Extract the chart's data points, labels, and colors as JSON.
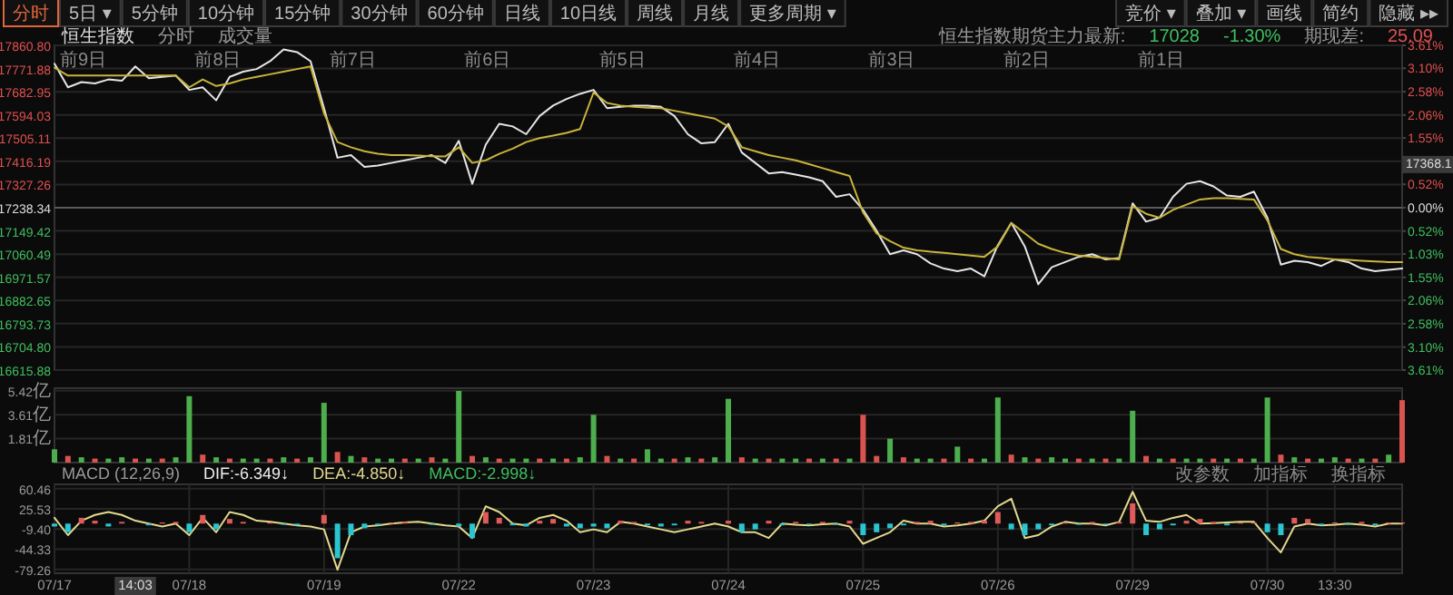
{
  "chart_data": [
    {
      "type": "line",
      "tick_labels": "y",
      "grid": "y",
      "categories": [
        null,
        null,
        null,
        null,
        null,
        null,
        null,
        null,
        null,
        null,
        null,
        null,
        null,
        null,
        null,
        null,
        null,
        null,
        null,
        null,
        null,
        null,
        null,
        null,
        null,
        null,
        null,
        null,
        null,
        null,
        null,
        null,
        null,
        null,
        null,
        null,
        null,
        null,
        null,
        null,
        null,
        null,
        null,
        null,
        null,
        null,
        null,
        null,
        null,
        null,
        null,
        null,
        null,
        null,
        null,
        null,
        null,
        null,
        null,
        null,
        null,
        null,
        null,
        null,
        null,
        null,
        null,
        null,
        null,
        null,
        null,
        null,
        null,
        null,
        null,
        null,
        null,
        null,
        null,
        null,
        null,
        null,
        null,
        null,
        null,
        null,
        null,
        null,
        null,
        null,
        null,
        null,
        null,
        null,
        null,
        null,
        null,
        null,
        null,
        null,
        null
      ],
      "ylim": [
        16615.88,
        17860.8
      ],
      "yticks": [
        {
          "value": 16615.88,
          "label": "16615.88"
        },
        {
          "value": 16704.8,
          "label": "16704.80"
        },
        {
          "value": 16793.73,
          "label": "16793.73"
        },
        {
          "value": 16882.65,
          "label": "16882.65"
        },
        {
          "value": 16971.57,
          "label": "16971.57"
        },
        {
          "value": 17060.49,
          "label": "17060.49"
        },
        {
          "value": 17149.42,
          "label": "17149.42"
        },
        {
          "value": 17238.34,
          "label": "17238.34"
        },
        {
          "value": 17327.26,
          "label": "17327.26"
        },
        {
          "value": 17416.19,
          "label": "17416.19"
        },
        {
          "value": 17505.11,
          "label": "17505.11"
        },
        {
          "value": 17594.03,
          "label": "17594.03"
        },
        {
          "value": 17682.95,
          "label": "17682.95"
        },
        {
          "value": 17771.88,
          "label": "17771.88"
        },
        {
          "value": 17860.8,
          "label": "17860.80"
        }
      ],
      "y2lim": [
        -3.61,
        3.61
      ],
      "y2ticks": [
        {
          "value": -3.61,
          "label": "3.61%"
        },
        {
          "value": -3.1,
          "label": "3.10%"
        },
        {
          "value": -2.58,
          "label": "2.58%"
        },
        {
          "value": -2.06,
          "label": "2.06%"
        },
        {
          "value": -1.55,
          "label": "1.55%"
        },
        {
          "value": -1.03,
          "label": "1.03%"
        },
        {
          "value": -0.52,
          "label": "0.52%"
        },
        {
          "value": 0,
          "label": "0.00%"
        },
        {
          "value": 0.52,
          "label": "0.52%"
        },
        {
          "value": 1.03,
          "label": null
        },
        {
          "value": 1.55,
          "label": "1.55%"
        },
        {
          "value": 2.06,
          "label": "2.06%"
        },
        {
          "value": 2.58,
          "label": "2.58%"
        },
        {
          "value": 3.1,
          "label": "3.10%"
        },
        {
          "value": 3.61,
          "label": "3.61%"
        }
      ],
      "ref_lines": [
        {
          "axis": "y",
          "value": 17238.34,
          "color": "#5a5a5a"
        }
      ],
      "series": [
        {
          "color": "#e6e6e6",
          "values": [
            17790,
            17700,
            17720,
            17715,
            17730,
            17725,
            17780,
            17735,
            17740,
            17745,
            17690,
            17700,
            17650,
            17740,
            17760,
            17770,
            17800,
            17845,
            17835,
            17800,
            17620,
            17430,
            17440,
            17395,
            17400,
            17410,
            17420,
            17430,
            17440,
            17410,
            17495,
            17330,
            17480,
            17560,
            17550,
            17520,
            17590,
            17630,
            17655,
            17675,
            17690,
            17620,
            17625,
            17630,
            17630,
            17625,
            17590,
            17520,
            17485,
            17490,
            17560,
            17450,
            17410,
            17370,
            17375,
            17365,
            17355,
            17340,
            17280,
            17290,
            17230,
            17150,
            17060,
            17075,
            17060,
            17025,
            17005,
            16995,
            17005,
            16975,
            17095,
            17180,
            17090,
            16945,
            17010,
            17030,
            17050,
            17060,
            17040,
            17045,
            17255,
            17185,
            17200,
            17280,
            17330,
            17340,
            17320,
            17285,
            17280,
            17300,
            17200,
            17020,
            17035,
            17030,
            17015,
            17040,
            17030,
            17005,
            16995,
            17000,
            17005
          ]
        },
        {
          "color": "#c9b43c",
          "values": [
            17775,
            17745,
            17745,
            17745,
            17745,
            17745,
            17745,
            17745,
            17745,
            17745,
            17700,
            17730,
            17705,
            17715,
            17730,
            17740,
            17750,
            17760,
            17770,
            17780,
            17600,
            17490,
            17470,
            17455,
            17445,
            17440,
            17440,
            17438,
            17436,
            17435,
            17470,
            17410,
            17420,
            17445,
            17465,
            17490,
            17505,
            17515,
            17525,
            17540,
            17680,
            17640,
            17630,
            17625,
            17622,
            17620,
            17610,
            17600,
            17590,
            17580,
            17550,
            17470,
            17455,
            17440,
            17430,
            17420,
            17405,
            17390,
            17375,
            17360,
            17220,
            17140,
            17110,
            17085,
            17075,
            17070,
            17065,
            17060,
            17055,
            17050,
            17090,
            17180,
            17140,
            17100,
            17080,
            17065,
            17055,
            17050,
            17045,
            17040,
            17245,
            17215,
            17200,
            17230,
            17250,
            17270,
            17275,
            17275,
            17272,
            17270,
            17190,
            17080,
            17060,
            17050,
            17045,
            17040,
            17038,
            17035,
            17032,
            17030,
            17030
          ]
        }
      ],
      "annotations": [
        "分时",
        "5日 ▾",
        "5分钟",
        "10分钟",
        "15分钟",
        "30分钟",
        "60分钟",
        "日线",
        "10日线",
        "周线",
        "月线",
        "更多周期 ▾",
        "竞价 ▾",
        "叠加 ▾",
        "画线",
        "简约",
        "隐藏 ▸▸",
        "恒生指数",
        "分时",
        "成交量",
        "恒生指数期货主力最新:",
        "17028",
        "-1.30%",
        "期现差:",
        "25.09",
        "17368.1",
        "前9日",
        "前8日",
        "前7日",
        "前6日",
        "前5日",
        "前4日",
        "前3日",
        "前2日",
        "前1日"
      ]
    },
    {
      "type": "bar",
      "tick_labels": "y",
      "grid": "y",
      "ylim": [
        0,
        5.6
      ],
      "categories": [
        null,
        null,
        null,
        null,
        null,
        null,
        null,
        null,
        null,
        null,
        null,
        null,
        null,
        null,
        null,
        null,
        null,
        null,
        null,
        null,
        null,
        null,
        null,
        null,
        null,
        null,
        null,
        null,
        null,
        null,
        null,
        null,
        null,
        null,
        null,
        null,
        null,
        null,
        null,
        null,
        null,
        null,
        null,
        null,
        null,
        null,
        null,
        null,
        null,
        null,
        null,
        null,
        null,
        null,
        null,
        null,
        null,
        null,
        null,
        null,
        null,
        null,
        null,
        null,
        null,
        null,
        null,
        null,
        null,
        null,
        null,
        null,
        null,
        null,
        null,
        null,
        null,
        null,
        null,
        null,
        null,
        null,
        null,
        null,
        null,
        null,
        null,
        null,
        null,
        null,
        null,
        null,
        null,
        null,
        null,
        null,
        null,
        null,
        null,
        null,
        null
      ],
      "yticks": [
        {
          "value": 1.81,
          "label": "1.81亿"
        },
        {
          "value": 3.61,
          "label": "3.61亿"
        },
        {
          "value": 5.42,
          "label": "5.42亿"
        }
      ],
      "values": [
        1.0,
        0.5,
        0.4,
        0.3,
        0.3,
        0.4,
        0.3,
        0.3,
        0.3,
        0.4,
        5.0,
        0.6,
        0.4,
        0.3,
        0.3,
        0.3,
        0.3,
        0.4,
        0.3,
        0.4,
        4.5,
        0.8,
        0.5,
        0.4,
        0.3,
        0.3,
        0.3,
        0.3,
        0.4,
        0.3,
        5.4,
        0.5,
        0.4,
        0.3,
        0.3,
        0.3,
        0.3,
        0.3,
        0.3,
        0.4,
        3.6,
        0.5,
        0.3,
        0.3,
        1.0,
        0.3,
        0.3,
        0.4,
        0.3,
        0.4,
        4.8,
        0.4,
        0.3,
        0.3,
        0.3,
        0.3,
        0.3,
        0.3,
        0.3,
        0.3,
        3.6,
        0.5,
        1.8,
        0.4,
        0.3,
        0.3,
        0.3,
        1.2,
        0.3,
        0.3,
        4.9,
        0.6,
        0.4,
        0.3,
        0.4,
        0.3,
        0.3,
        0.3,
        0.3,
        0.3,
        3.9,
        0.5,
        0.3,
        0.3,
        0.3,
        0.3,
        0.3,
        0.3,
        0.3,
        0.3,
        4.9,
        0.6,
        0.4,
        0.3,
        0.3,
        0.4,
        0.3,
        0.3,
        0.3,
        0.6,
        4.7
      ],
      "colors": [
        "#4cae4c",
        "#d9534f",
        "#4cae4c",
        "#d9534f",
        "#4cae4c",
        "#4cae4c",
        "#d9534f",
        "#4cae4c",
        "#d9534f",
        "#4cae4c",
        "#4cae4c",
        "#d9534f",
        "#4cae4c",
        "#d9534f",
        "#4cae4c",
        "#4cae4c",
        "#d9534f",
        "#4cae4c",
        "#d9534f",
        "#4cae4c",
        "#4cae4c",
        "#d9534f",
        "#4cae4c",
        "#d9534f",
        "#4cae4c",
        "#4cae4c",
        "#d9534f",
        "#4cae4c",
        "#d9534f",
        "#4cae4c",
        "#4cae4c",
        "#d9534f",
        "#4cae4c",
        "#d9534f",
        "#4cae4c",
        "#4cae4c",
        "#d9534f",
        "#4cae4c",
        "#d9534f",
        "#4cae4c",
        "#4cae4c",
        "#d9534f",
        "#4cae4c",
        "#d9534f",
        "#4cae4c",
        "#4cae4c",
        "#d9534f",
        "#4cae4c",
        "#d9534f",
        "#4cae4c",
        "#4cae4c",
        "#d9534f",
        "#4cae4c",
        "#d9534f",
        "#4cae4c",
        "#4cae4c",
        "#d9534f",
        "#4cae4c",
        "#d9534f",
        "#4cae4c",
        "#d9534f",
        "#d9534f",
        "#4cae4c",
        "#d9534f",
        "#4cae4c",
        "#4cae4c",
        "#d9534f",
        "#4cae4c",
        "#d9534f",
        "#4cae4c",
        "#4cae4c",
        "#d9534f",
        "#4cae4c",
        "#d9534f",
        "#4cae4c",
        "#4cae4c",
        "#d9534f",
        "#4cae4c",
        "#d9534f",
        "#4cae4c",
        "#4cae4c",
        "#d9534f",
        "#4cae4c",
        "#d9534f",
        "#4cae4c",
        "#4cae4c",
        "#d9534f",
        "#4cae4c",
        "#d9534f",
        "#4cae4c",
        "#4cae4c",
        "#d9534f",
        "#4cae4c",
        "#d9534f",
        "#4cae4c",
        "#4cae4c",
        "#d9534f",
        "#4cae4c",
        "#d9534f",
        "#4cae4c",
        "#d9534f"
      ]
    },
    {
      "type": "bar",
      "grid": true,
      "ylim": [
        -86,
        68
      ],
      "yticks": [
        {
          "value": -79.26,
          "label": "-79.26"
        },
        {
          "value": -44.33,
          "label": "-44.33"
        },
        {
          "value": -9.4,
          "label": "-9.40"
        },
        {
          "value": 25.53,
          "label": "25.53"
        },
        {
          "value": 60.46,
          "label": "60.46"
        }
      ],
      "categories": [
        "07/17",
        null,
        null,
        null,
        null,
        null,
        null,
        null,
        null,
        null,
        "07/18",
        null,
        null,
        null,
        null,
        null,
        null,
        null,
        null,
        null,
        "07/19",
        null,
        null,
        null,
        null,
        null,
        null,
        null,
        null,
        null,
        "07/22",
        null,
        null,
        null,
        null,
        null,
        null,
        null,
        null,
        null,
        "07/23",
        null,
        null,
        null,
        null,
        null,
        null,
        null,
        null,
        null,
        "07/24",
        null,
        null,
        null,
        null,
        null,
        null,
        null,
        null,
        null,
        "07/25",
        null,
        null,
        null,
        null,
        null,
        null,
        null,
        null,
        null,
        "07/26",
        null,
        null,
        null,
        null,
        null,
        null,
        null,
        null,
        null,
        "07/29",
        null,
        null,
        null,
        null,
        null,
        null,
        null,
        null,
        null,
        "07/30",
        null,
        null,
        null,
        null,
        "13:30",
        null,
        null,
        null,
        null,
        null
      ],
      "series": [
        {
          "values": [
            -5,
            -15,
            10,
            5,
            -5,
            3,
            0,
            -3,
            2,
            3,
            -15,
            15,
            -10,
            8,
            3,
            0,
            2,
            -2,
            -3,
            0,
            15,
            -60,
            -20,
            -8,
            -3,
            2,
            3,
            0,
            -2,
            0,
            -5,
            -25,
            20,
            10,
            -3,
            -5,
            5,
            8,
            -5,
            -8,
            -5,
            -8,
            5,
            3,
            -3,
            -5,
            -3,
            5,
            3,
            0,
            5,
            -15,
            -10,
            5,
            -3,
            3,
            -2,
            3,
            -2,
            5,
            -20,
            -15,
            -8,
            -3,
            3,
            5,
            -3,
            2,
            3,
            5,
            20,
            -10,
            -20,
            -10,
            -3,
            2,
            -2,
            3,
            -2,
            3,
            35,
            -20,
            -10,
            -3,
            5,
            8,
            3,
            -3,
            2,
            2,
            -15,
            -20,
            10,
            8,
            -3,
            2,
            -2,
            3,
            -3,
            2,
            2
          ],
          "colors": [
            "#29c5d0",
            "#29c5d0",
            "#e05a5a",
            "#e05a5a",
            "#29c5d0",
            "#e05a5a",
            "#e05a5a",
            "#29c5d0",
            "#e05a5a",
            "#e05a5a",
            "#29c5d0",
            "#e05a5a",
            "#29c5d0",
            "#e05a5a",
            "#e05a5a",
            "#e05a5a",
            "#e05a5a",
            "#29c5d0",
            "#29c5d0",
            "#e05a5a",
            "#e05a5a",
            "#29c5d0",
            "#29c5d0",
            "#29c5d0",
            "#29c5d0",
            "#e05a5a",
            "#e05a5a",
            "#e05a5a",
            "#29c5d0",
            "#e05a5a",
            "#29c5d0",
            "#29c5d0",
            "#e05a5a",
            "#e05a5a",
            "#29c5d0",
            "#29c5d0",
            "#e05a5a",
            "#e05a5a",
            "#29c5d0",
            "#29c5d0",
            "#29c5d0",
            "#29c5d0",
            "#e05a5a",
            "#e05a5a",
            "#29c5d0",
            "#29c5d0",
            "#29c5d0",
            "#e05a5a",
            "#e05a5a",
            "#e05a5a",
            "#e05a5a",
            "#29c5d0",
            "#29c5d0",
            "#e05a5a",
            "#29c5d0",
            "#e05a5a",
            "#29c5d0",
            "#e05a5a",
            "#29c5d0",
            "#e05a5a",
            "#29c5d0",
            "#29c5d0",
            "#29c5d0",
            "#29c5d0",
            "#e05a5a",
            "#e05a5a",
            "#29c5d0",
            "#e05a5a",
            "#e05a5a",
            "#e05a5a",
            "#e05a5a",
            "#29c5d0",
            "#29c5d0",
            "#29c5d0",
            "#29c5d0",
            "#e05a5a",
            "#29c5d0",
            "#e05a5a",
            "#29c5d0",
            "#e05a5a",
            "#e05a5a",
            "#29c5d0",
            "#29c5d0",
            "#29c5d0",
            "#e05a5a",
            "#e05a5a",
            "#e05a5a",
            "#29c5d0",
            "#e05a5a",
            "#e05a5a",
            "#29c5d0",
            "#29c5d0",
            "#e05a5a",
            "#e05a5a",
            "#29c5d0",
            "#e05a5a",
            "#29c5d0",
            "#e05a5a",
            "#29c5d0",
            "#e05a5a",
            "#e05a5a"
          ]
        },
        {
          "type": "line",
          "color": "#e3d98e",
          "values": [
            10,
            -20,
            5,
            15,
            20,
            15,
            5,
            0,
            -5,
            0,
            -20,
            10,
            -15,
            20,
            15,
            5,
            3,
            0,
            -3,
            -5,
            -10,
            -80,
            -15,
            -5,
            -3,
            0,
            2,
            3,
            0,
            -3,
            -5,
            -25,
            30,
            20,
            0,
            -3,
            10,
            15,
            5,
            -15,
            -10,
            -15,
            3,
            0,
            -5,
            -10,
            -15,
            -10,
            -5,
            0,
            -5,
            -15,
            -15,
            -25,
            0,
            -2,
            -3,
            -1,
            0,
            -5,
            -35,
            -25,
            -15,
            5,
            0,
            0,
            -5,
            -3,
            0,
            5,
            30,
            43,
            -25,
            -20,
            -5,
            3,
            0,
            0,
            -3,
            3,
            55,
            5,
            3,
            10,
            15,
            0,
            1,
            2,
            3,
            3,
            -25,
            -50,
            -5,
            0,
            -3,
            -2,
            0,
            -2,
            -5,
            0,
            0
          ]
        }
      ],
      "annotations": [
        "MACD (12,26,9)",
        "DIF:-6.349↓",
        "DEA:-4.850↓",
        "MACD:-2.998↓",
        "改参数",
        "加指标",
        "换指标",
        "14:03"
      ]
    }
  ]
}
